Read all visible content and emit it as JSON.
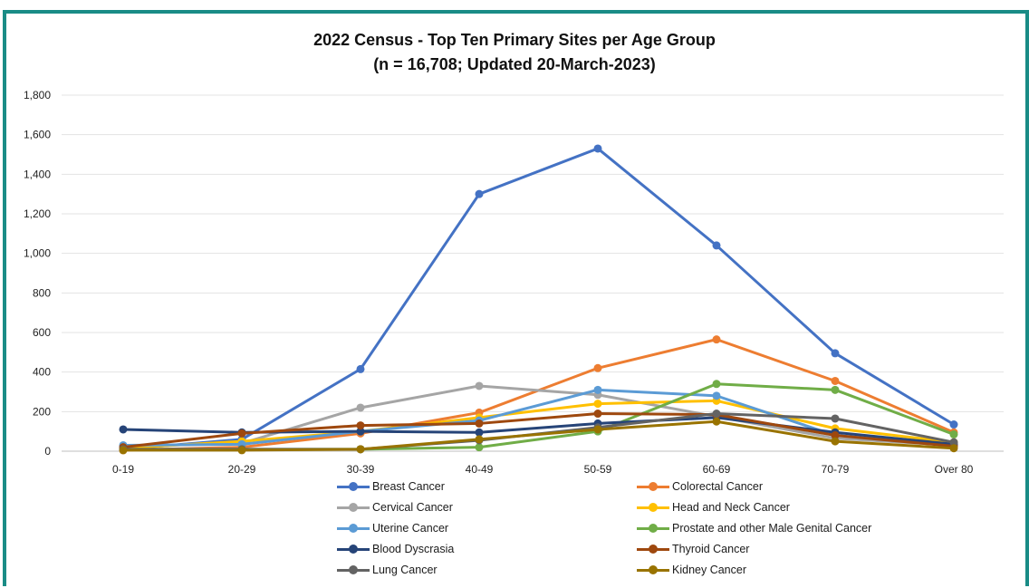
{
  "chart_data": {
    "type": "line",
    "title": "2022 Census - Top Ten Primary Sites per Age Group",
    "subtitle": "(n = 16,708; Updated 20-March-2023)",
    "xlabel": "",
    "ylabel": "",
    "ylim": [
      0,
      1800
    ],
    "yticks": [
      "0",
      "200",
      "400",
      "600",
      "800",
      "1,000",
      "1,200",
      "1,400",
      "1,600",
      "1,800"
    ],
    "grid": "horizontal",
    "legend_position": "bottom",
    "categories": [
      "0-19",
      "20-29",
      "30-39",
      "40-49",
      "50-59",
      "60-69",
      "70-79",
      "Over 80"
    ],
    "series": [
      {
        "name": "Breast Cancer",
        "color": "#4472c4",
        "values": [
          10,
          60,
          415,
          1300,
          1530,
          1040,
          495,
          135
        ]
      },
      {
        "name": "Colorectal Cancer",
        "color": "#ed7d31",
        "values": [
          5,
          20,
          90,
          195,
          420,
          565,
          355,
          95
        ]
      },
      {
        "name": "Cervical Cancer",
        "color": "#a5a5a5",
        "values": [
          25,
          40,
          220,
          330,
          285,
          175,
          65,
          30
        ]
      },
      {
        "name": "Head and Neck Cancer",
        "color": "#ffc000",
        "values": [
          15,
          50,
          100,
          170,
          240,
          255,
          115,
          45
        ]
      },
      {
        "name": "Uterine Cancer",
        "color": "#5b9bd5",
        "values": [
          30,
          35,
          100,
          155,
          310,
          280,
          80,
          30
        ]
      },
      {
        "name": "Prostate and other Male Genital Cancer",
        "color": "#70ad47",
        "values": [
          10,
          10,
          10,
          20,
          100,
          340,
          310,
          85
        ]
      },
      {
        "name": "Blood Dyscrasia",
        "color": "#264478",
        "values": [
          110,
          95,
          100,
          95,
          140,
          170,
          95,
          35
        ]
      },
      {
        "name": "Thyroid Cancer",
        "color": "#9e480e",
        "values": [
          20,
          90,
          130,
          140,
          190,
          185,
          80,
          25
        ]
      },
      {
        "name": "Lung Cancer",
        "color": "#636363",
        "values": [
          10,
          10,
          10,
          55,
          120,
          190,
          165,
          45
        ]
      },
      {
        "name": "Kidney Cancer",
        "color": "#997300",
        "values": [
          5,
          5,
          10,
          60,
          110,
          150,
          50,
          15
        ]
      }
    ]
  }
}
